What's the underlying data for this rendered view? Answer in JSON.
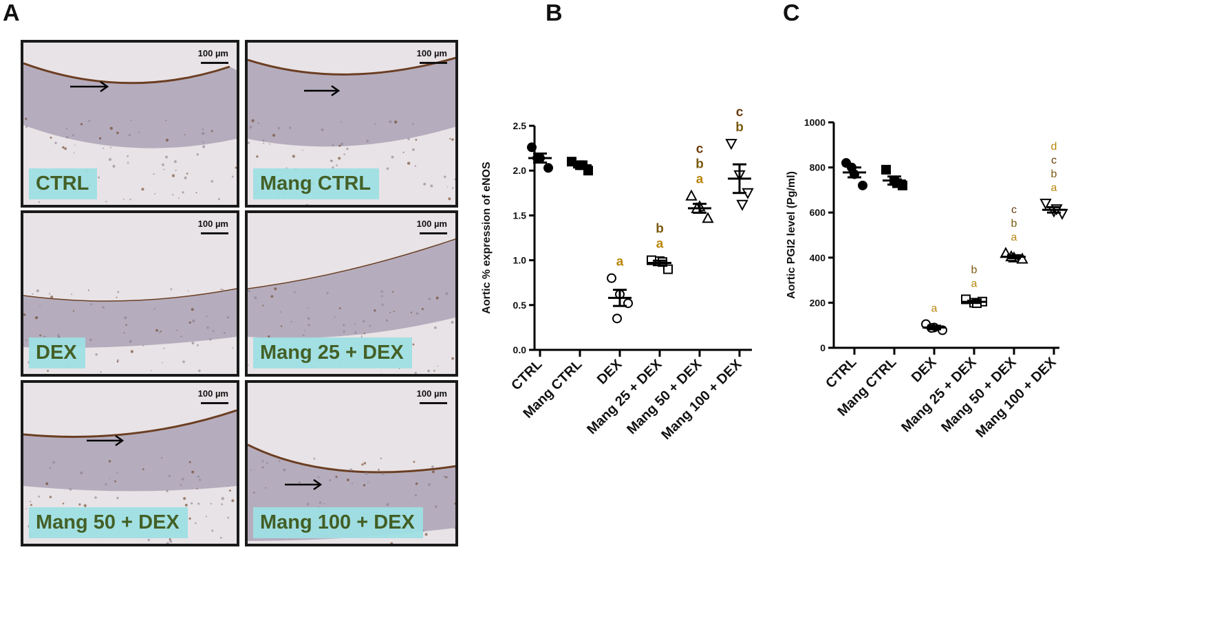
{
  "panel_letters": {
    "a": "A",
    "b": "B",
    "c": "C"
  },
  "micrographs": [
    {
      "label": "CTRL",
      "scale": "100 µm"
    },
    {
      "label": "Mang CTRL",
      "scale": "100 µm"
    },
    {
      "label": "DEX",
      "scale": "100 µm"
    },
    {
      "label": "Mang 25 + DEX",
      "scale": "100 µm"
    },
    {
      "label": "Mang 50 + DEX",
      "scale": "100 µm"
    },
    {
      "label": "Mang 100 + DEX",
      "scale": "100 µm"
    }
  ],
  "colors": {
    "tissue": "#a79fb3",
    "stain": "#6b3e22",
    "background": "#e8e3e6",
    "sig_a": "#b8860b",
    "sig_b": "#7a5a10",
    "sig_c": "#6b3a0a",
    "label_bg": "#9fe0e4",
    "label_fg": "#3c5a1c"
  },
  "chart_data": [
    {
      "type": "scatter",
      "panel": "B",
      "ylabel": "Aortic % expression of eNOS",
      "xlabel": "",
      "ylim": [
        0,
        2.5
      ],
      "yticks": [
        "0.0",
        "0.5",
        "1.0",
        "1.5",
        "2.0",
        "2.5"
      ],
      "categories": [
        "CTRL",
        "Mang CTRL",
        "DEX",
        "Mang 25 + DEX",
        "Mang 50 + DEX",
        "Mang 100 + DEX"
      ],
      "markers": [
        "circle-filled",
        "square-filled",
        "circle-open",
        "square-open",
        "triangle-open",
        "triangle-down-open"
      ],
      "points": [
        [
          2.26,
          2.14,
          2.03,
          2.14
        ],
        [
          2.1,
          2.06,
          2.0,
          2.06
        ],
        [
          0.8,
          0.62,
          0.52,
          0.35
        ],
        [
          1.0,
          0.99,
          0.9,
          0.98
        ],
        [
          1.72,
          1.6,
          1.47,
          1.58
        ],
        [
          2.3,
          1.95,
          1.75,
          1.62
        ]
      ],
      "means": [
        2.14,
        2.06,
        0.58,
        0.97,
        1.58,
        1.91
      ],
      "sem": [
        0.05,
        0.025,
        0.09,
        0.025,
        0.05,
        0.16
      ],
      "significance": [
        [],
        [],
        [
          "a"
        ],
        [
          "b",
          "a"
        ],
        [
          "c",
          "b",
          "a"
        ],
        [
          "c",
          "b"
        ]
      ]
    },
    {
      "type": "scatter",
      "panel": "C",
      "ylabel": "Aortic PGI2 level (Pg/ml)",
      "xlabel": "",
      "ylim": [
        0,
        1000
      ],
      "yticks": [
        "0",
        "200",
        "400",
        "600",
        "800",
        "1000"
      ],
      "categories": [
        "CTRL",
        "Mang CTRL",
        "DEX",
        "Mang 25 + DEX",
        "Mang 50 + DEX",
        "Mang 100 + DEX"
      ],
      "markers": [
        "circle-filled",
        "square-filled",
        "circle-open",
        "square-open",
        "triangle-open",
        "triangle-down-open"
      ],
      "points": [
        [
          820,
          770,
          720,
          800
        ],
        [
          790,
          740,
          720,
          730
        ],
        [
          105,
          90,
          78,
          88
        ],
        [
          215,
          200,
          205,
          198
        ],
        [
          420,
          400,
          395,
          405
        ],
        [
          640,
          605,
          595,
          615
        ]
      ],
      "means": [
        778,
        742,
        90,
        204,
        404,
        612
      ],
      "sem": [
        22,
        18,
        8,
        5,
        7,
        12
      ],
      "significance": [
        [],
        [],
        [
          "a"
        ],
        [
          "b",
          "a"
        ],
        [
          "c",
          "b",
          "a"
        ],
        [
          "d",
          "c",
          "b",
          "a"
        ]
      ]
    }
  ]
}
